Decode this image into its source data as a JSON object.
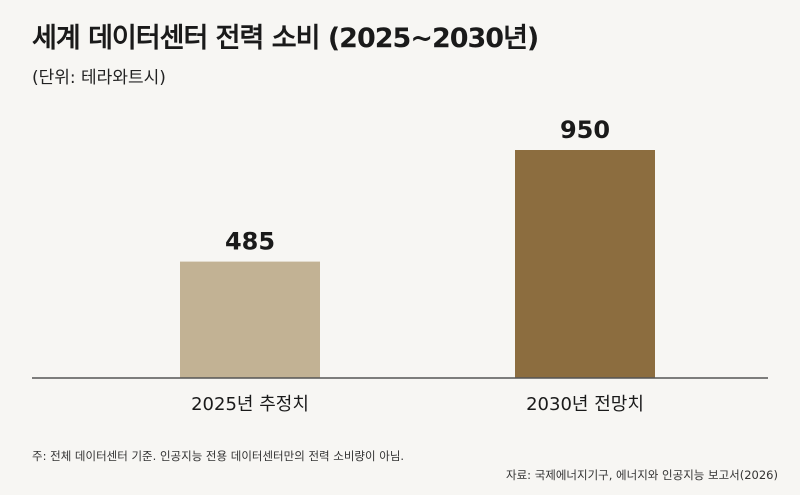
{
  "chart_data": {
    "type": "bar",
    "title": "세계 데이터센터 전력 소비 (2025~2030년)",
    "subtitle": "(단위: 테라와트시)",
    "categories": [
      "2025년 추정치",
      "2030년 전망치"
    ],
    "values": [
      485,
      950
    ],
    "ylim": [
      0,
      1000
    ],
    "grid": false,
    "legend": "none",
    "colors": [
      "#c2b294",
      "#8c6d3f"
    ],
    "baseline_color": "#555555"
  },
  "footer": {
    "note": "주: 전체 데이터센터 기준. 인공지능 전용 데이터센터만의 전력 소비량이 아님.",
    "source": "자료: 국제에너지기구, 에너지와 인공지능 보고서(2026)"
  }
}
